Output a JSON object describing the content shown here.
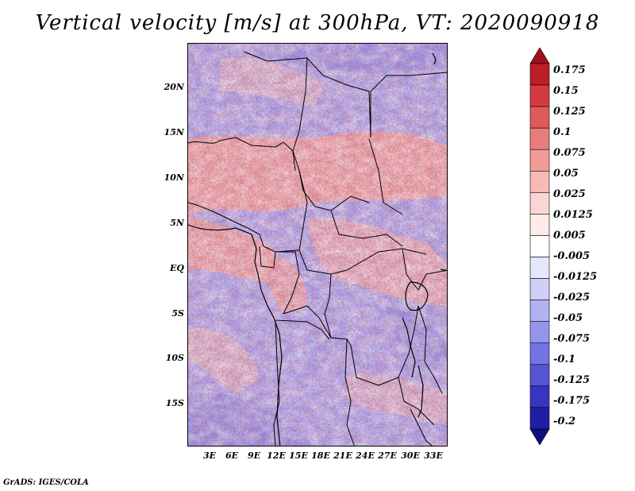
{
  "title": "Vertical velocity [m/s] at 300hPa, VT: 2020090918",
  "footer": "GrADS: IGES/COLA",
  "lat_labels": [
    "20N",
    "15N",
    "10N",
    "5N",
    "EQ",
    "5S",
    "10S",
    "15S"
  ],
  "lon_labels": [
    "3E",
    "6E",
    "9E",
    "12E",
    "15E",
    "18E",
    "21E",
    "24E",
    "27E",
    "30E",
    "33E"
  ],
  "colorbar": {
    "levels": [
      "0.175",
      "0.15",
      "0.125",
      "0.1",
      "0.075",
      "0.05",
      "0.025",
      "0.0125",
      "0.005",
      "-0.005",
      "-0.0125",
      "-0.025",
      "-0.05",
      "-0.075",
      "-0.1",
      "-0.125",
      "-0.175",
      "-0.2"
    ],
    "colors": [
      "#a0101a",
      "#be1e28",
      "#d53a40",
      "#e05a5c",
      "#ea7d7b",
      "#f19c98",
      "#f6bbb6",
      "#f9d6d2",
      "#fcebe8",
      "#ffffff",
      "#e6e6fc",
      "#cfcff8",
      "#b2b2f2",
      "#9494ec",
      "#7474e2",
      "#5555d4",
      "#3636c2",
      "#1e1ea6",
      "#0e0e7e"
    ]
  }
}
